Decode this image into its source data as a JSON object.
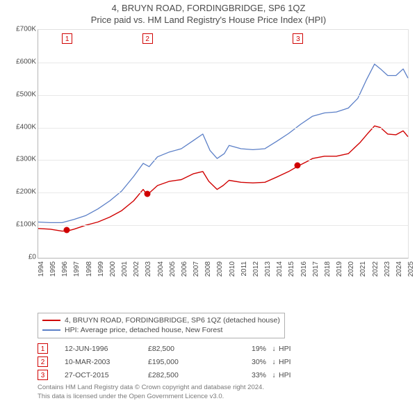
{
  "title_line1": "4, BRUYN ROAD, FORDINGBRIDGE, SP6 1QZ",
  "title_line2": "Price paid vs. HM Land Registry's House Price Index (HPI)",
  "chart": {
    "type": "line",
    "background_color": "#ffffff",
    "grid_color": "#e8e8e8",
    "axis_color": "#b5b5b5",
    "tick_fontsize": 10,
    "tick_color": "#4a4a4a",
    "x": {
      "min": 1994,
      "max": 2025,
      "ticks": [
        1994,
        1995,
        1996,
        1997,
        1998,
        1999,
        2000,
        2001,
        2002,
        2003,
        2004,
        2005,
        2006,
        2007,
        2008,
        2009,
        2010,
        2011,
        2012,
        2013,
        2014,
        2015,
        2016,
        2017,
        2018,
        2019,
        2020,
        2021,
        2022,
        2023,
        2024,
        2025
      ],
      "rotation": -90
    },
    "y": {
      "min": 0,
      "max": 700000,
      "ticks": [
        0,
        100000,
        200000,
        300000,
        400000,
        500000,
        600000,
        700000
      ],
      "tick_labels": [
        "£0",
        "£100K",
        "£200K",
        "£300K",
        "£400K",
        "£500K",
        "£600K",
        "£700K"
      ]
    },
    "series": [
      {
        "name": "property",
        "label": "4, BRUYN ROAD, FORDINGBRIDGE, SP6 1QZ (detached house)",
        "color": "#d00000",
        "line_width": 1.4,
        "points": [
          [
            1994.0,
            90000
          ],
          [
            1995.0,
            88000
          ],
          [
            1996.0,
            82000
          ],
          [
            1996.46,
            82500
          ],
          [
            1997.0,
            88000
          ],
          [
            1998.0,
            100000
          ],
          [
            1999.0,
            110000
          ],
          [
            2000.0,
            125000
          ],
          [
            2001.0,
            145000
          ],
          [
            2002.0,
            175000
          ],
          [
            2002.8,
            210000
          ],
          [
            2003.0,
            200000
          ],
          [
            2003.19,
            195000
          ],
          [
            2004.0,
            222000
          ],
          [
            2005.0,
            235000
          ],
          [
            2006.0,
            240000
          ],
          [
            2007.0,
            258000
          ],
          [
            2007.8,
            265000
          ],
          [
            2008.3,
            235000
          ],
          [
            2009.0,
            210000
          ],
          [
            2009.5,
            222000
          ],
          [
            2010.0,
            238000
          ],
          [
            2011.0,
            232000
          ],
          [
            2012.0,
            230000
          ],
          [
            2013.0,
            232000
          ],
          [
            2014.0,
            248000
          ],
          [
            2015.0,
            265000
          ],
          [
            2015.82,
            282500
          ],
          [
            2016.5,
            295000
          ],
          [
            2017.0,
            305000
          ],
          [
            2018.0,
            312000
          ],
          [
            2019.0,
            312000
          ],
          [
            2020.0,
            320000
          ],
          [
            2021.0,
            355000
          ],
          [
            2021.7,
            385000
          ],
          [
            2022.2,
            405000
          ],
          [
            2022.7,
            400000
          ],
          [
            2023.3,
            380000
          ],
          [
            2024.0,
            378000
          ],
          [
            2024.6,
            390000
          ],
          [
            2025.0,
            372000
          ]
        ]
      },
      {
        "name": "hpi",
        "label": "HPI: Average price, detached house, New Forest",
        "color": "#5b7fc7",
        "line_width": 1.3,
        "points": [
          [
            1994.0,
            110000
          ],
          [
            1995.0,
            108000
          ],
          [
            1996.0,
            108000
          ],
          [
            1997.0,
            118000
          ],
          [
            1998.0,
            130000
          ],
          [
            1999.0,
            150000
          ],
          [
            2000.0,
            175000
          ],
          [
            2001.0,
            205000
          ],
          [
            2002.0,
            250000
          ],
          [
            2002.8,
            290000
          ],
          [
            2003.3,
            280000
          ],
          [
            2004.0,
            310000
          ],
          [
            2005.0,
            325000
          ],
          [
            2006.0,
            335000
          ],
          [
            2007.0,
            360000
          ],
          [
            2007.8,
            380000
          ],
          [
            2008.4,
            330000
          ],
          [
            2009.0,
            305000
          ],
          [
            2009.6,
            320000
          ],
          [
            2010.0,
            345000
          ],
          [
            2011.0,
            335000
          ],
          [
            2012.0,
            332000
          ],
          [
            2013.0,
            335000
          ],
          [
            2014.0,
            358000
          ],
          [
            2015.0,
            382000
          ],
          [
            2016.0,
            410000
          ],
          [
            2017.0,
            435000
          ],
          [
            2018.0,
            445000
          ],
          [
            2019.0,
            448000
          ],
          [
            2020.0,
            460000
          ],
          [
            2020.8,
            490000
          ],
          [
            2021.5,
            545000
          ],
          [
            2022.2,
            595000
          ],
          [
            2022.7,
            580000
          ],
          [
            2023.3,
            560000
          ],
          [
            2024.0,
            560000
          ],
          [
            2024.6,
            580000
          ],
          [
            2025.0,
            552000
          ]
        ]
      }
    ],
    "sale_markers": [
      {
        "n": "1",
        "year": 1996.46,
        "value": 82500
      },
      {
        "n": "2",
        "year": 2003.19,
        "value": 195000
      },
      {
        "n": "3",
        "year": 2015.82,
        "value": 282500
      }
    ],
    "plot_inner_w": 532,
    "plot_inner_h": 328
  },
  "legend": {
    "border_color": "#b0b0b0",
    "entries": [
      {
        "color": "#d00000",
        "label": "4, BRUYN ROAD, FORDINGBRIDGE, SP6 1QZ (detached house)"
      },
      {
        "color": "#5b7fc7",
        "label": "HPI: Average price, detached house, New Forest"
      }
    ]
  },
  "sales_table": {
    "hpi_label": "HPI",
    "arrow_glyph": "↓",
    "rows": [
      {
        "n": "1",
        "date": "12-JUN-1996",
        "price": "£82,500",
        "pct": "19%"
      },
      {
        "n": "2",
        "date": "10-MAR-2003",
        "price": "£195,000",
        "pct": "30%"
      },
      {
        "n": "3",
        "date": "27-OCT-2015",
        "price": "£282,500",
        "pct": "33%"
      }
    ]
  },
  "footer": {
    "line1": "Contains HM Land Registry data © Crown copyright and database right 2024.",
    "line2": "This data is licensed under the Open Government Licence v3.0."
  }
}
